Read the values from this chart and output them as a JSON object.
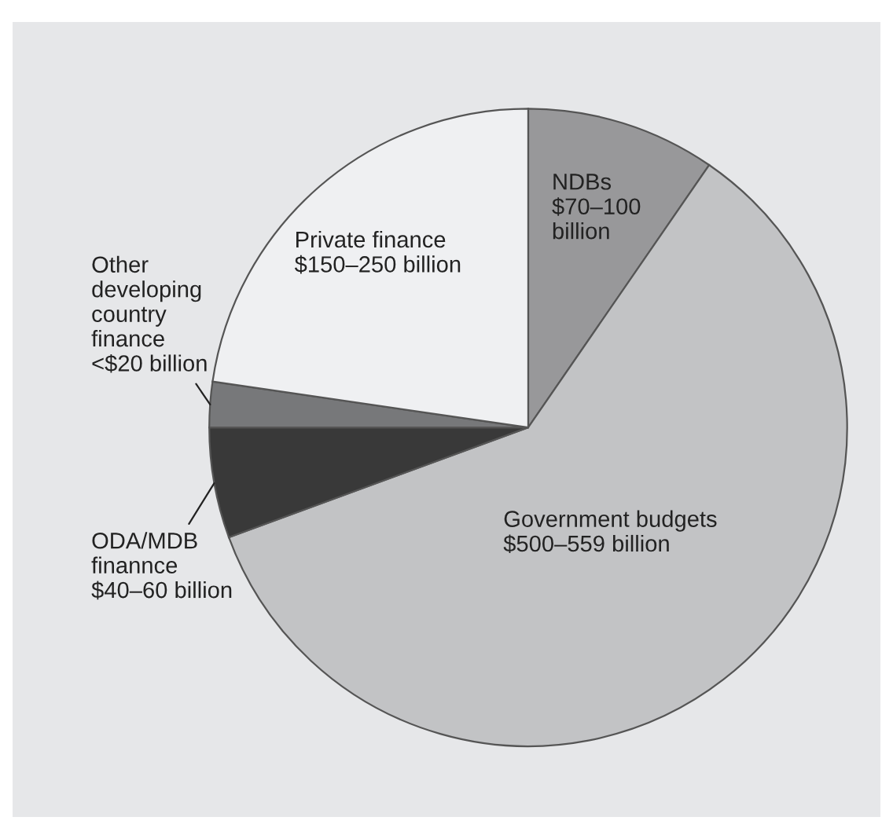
{
  "chart_data": {
    "type": "pie",
    "categories": [
      "NDBs\n$70–100\nbillion",
      "Government budgets\n$500–559 billion",
      "ODA/MDB\nfinannce\n$40–60 billion",
      "Other\ndeveloping\ncountry\nfinance\n<$20 billion",
      "Private finance\n$150–250 billion"
    ],
    "values": [
      9.6,
      59.8,
      5.6,
      2.3,
      22.7
    ],
    "colors": [
      "#98989a",
      "#c2c3c5",
      "#393939",
      "#77787a",
      "#eff0f2"
    ],
    "legend": false
  }
}
